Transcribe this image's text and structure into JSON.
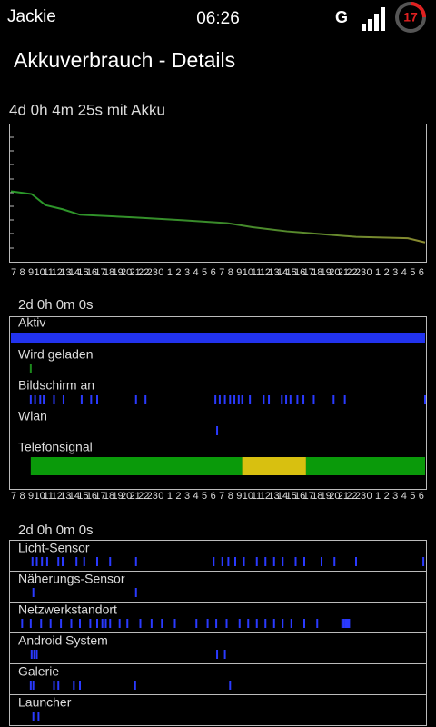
{
  "status_bar": {
    "user": "Jackie",
    "time": "06:26",
    "network": "G",
    "battery": "17"
  },
  "title": "Akkuverbrauch - Details",
  "battery_chart": {
    "label": "4d 0h 4m 25s mit Akku",
    "color": "#3a9a2a",
    "hours": [
      "7",
      "8",
      "9",
      "10",
      "11",
      "12",
      "13",
      "14",
      "15",
      "16",
      "17",
      "18",
      "19",
      "20",
      "21",
      "22",
      "23",
      "0",
      "1",
      "2",
      "3",
      "4",
      "5",
      "6",
      "7",
      "8",
      "9",
      "10",
      "11",
      "12",
      "13",
      "14",
      "15",
      "16",
      "17",
      "18",
      "19",
      "20",
      "21",
      "22",
      "23",
      "0",
      "1",
      "2",
      "3",
      "4",
      "5",
      "6"
    ],
    "x": [
      0,
      2.4,
      4,
      6,
      8,
      14.5,
      20,
      25,
      28,
      32,
      36,
      40,
      46,
      48
    ],
    "values": [
      51,
      49,
      41,
      38,
      34,
      32,
      30,
      28,
      25,
      22,
      20,
      18,
      17,
      14
    ],
    "xlim": [
      0,
      48
    ],
    "ylim": [
      0,
      100
    ]
  },
  "usage_chart": {
    "label": "2d 0h 0m 0s",
    "hours": [
      "7",
      "8",
      "9",
      "10",
      "11",
      "12",
      "13",
      "14",
      "15",
      "16",
      "17",
      "18",
      "19",
      "20",
      "21",
      "22",
      "23",
      "0",
      "1",
      "2",
      "3",
      "4",
      "5",
      "6",
      "7",
      "8",
      "9",
      "10",
      "11",
      "12",
      "13",
      "14",
      "15",
      "16",
      "17",
      "18",
      "19",
      "20",
      "21",
      "22",
      "23",
      "0",
      "1",
      "2",
      "3",
      "4",
      "5",
      "6"
    ],
    "xlim": [
      0,
      48
    ],
    "rows": [
      {
        "name": "Aktiv",
        "color": "#2233ee",
        "segments": [
          {
            "start": 0,
            "end": 48
          }
        ]
      },
      {
        "name": "Wird geladen",
        "color": "#1c8a1c",
        "events": [
          2.3
        ]
      },
      {
        "name": "Bildschirm an",
        "color": "#2a3aff",
        "events": [
          2.3,
          2.8,
          3.4,
          3.8,
          5,
          6.1,
          8.2,
          9.3,
          10,
          14.5,
          15.6,
          23.7,
          24.2,
          24.8,
          25.4,
          25.9,
          26.4,
          26.8,
          27.7,
          29.3,
          29.9,
          31.4,
          31.9,
          32.4,
          33.2,
          33.9,
          35.1,
          37.4,
          38.7,
          48
        ]
      },
      {
        "name": "Wlan",
        "color": "#2a3aff",
        "events": [
          23.9
        ]
      },
      {
        "name": "Telefonsignal",
        "segments": [
          {
            "start": 2.3,
            "end": 26.8,
            "color": "#0a9a0a"
          },
          {
            "start": 26.8,
            "end": 34.2,
            "color": "#d8c010"
          },
          {
            "start": 34.2,
            "end": 48,
            "color": "#0a9a0a"
          }
        ]
      }
    ]
  },
  "app_chart": {
    "label": "2d 0h 0m 0s",
    "xlim": [
      0,
      48
    ],
    "color": "#2a3aff",
    "rows": [
      {
        "name": "Licht-Sensor",
        "events": [
          2.5,
          3,
          3.6,
          4.2,
          5.5,
          6,
          7.6,
          8.5,
          10,
          11.5,
          14.5,
          23.5,
          24.5,
          25.2,
          26,
          27,
          28.5,
          29.5,
          30.5,
          31.5,
          33,
          34,
          36,
          37.5,
          40,
          47.8
        ]
      },
      {
        "name": "Näherungs-Sensor",
        "events": [
          2.6,
          14.5
        ]
      },
      {
        "name": "Netzwerkstandort",
        "events": [
          1.3,
          2.3,
          3.5,
          4.6,
          5.8,
          7,
          8,
          9.2,
          10,
          10.6,
          11,
          11.5,
          12.6,
          13.5,
          15,
          16.3,
          17.5,
          19,
          21.5,
          22.8,
          23.8,
          25,
          26.5,
          27.5,
          28.5,
          29.5,
          30.5,
          31.5,
          32.5,
          34,
          35.5,
          38.4,
          38.6,
          38.8,
          39,
          39.2
        ]
      },
      {
        "name": "Android System",
        "events": [
          2.4,
          2.7,
          3,
          23.9,
          24.8
        ]
      },
      {
        "name": "Galerie",
        "events": [
          2.3,
          2.6,
          5,
          5.5,
          7.3,
          8,
          14.4,
          25.4
        ]
      },
      {
        "name": "Launcher",
        "events": [
          2.6,
          3.2
        ]
      }
    ]
  }
}
